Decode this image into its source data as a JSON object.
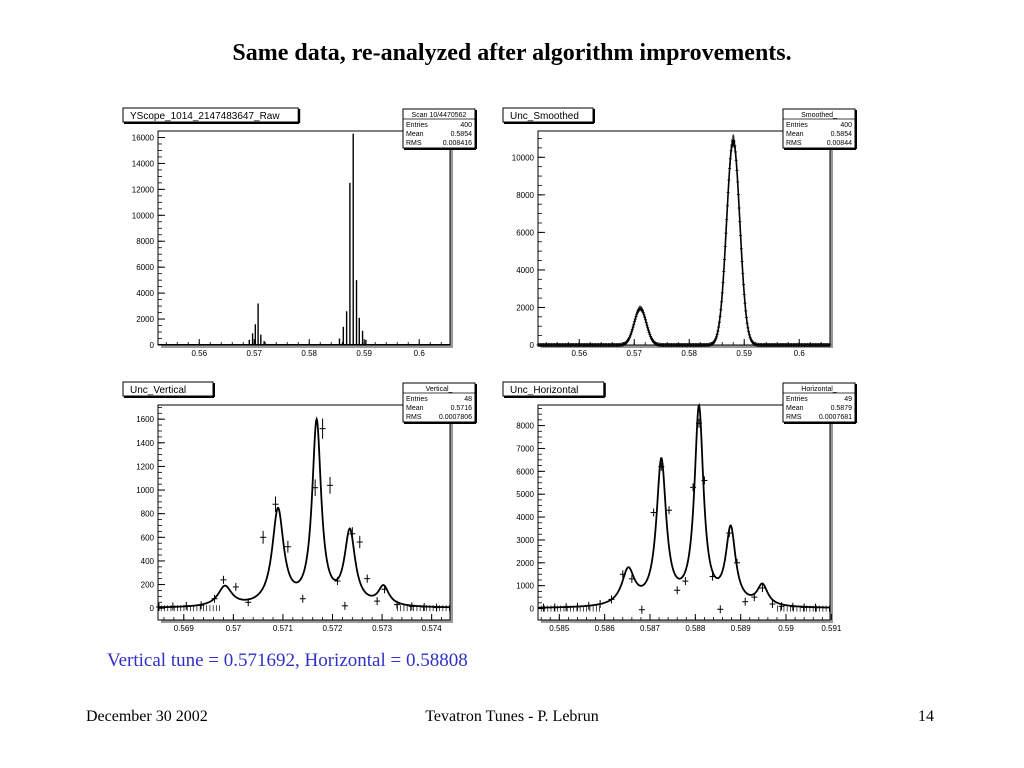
{
  "slide": {
    "title": "Same data, re-analyzed after algorithm improvements.",
    "caption": "Vertical tune = 0.571692, Horizontal = 0.58808",
    "footer_left": "December 30  2002",
    "footer_center": "Tevatron Tunes - P. Lebrun",
    "footer_right": "14"
  },
  "colors": {
    "title": "#000000",
    "caption": "#3030c8",
    "frame": "#000000",
    "background": "#ffffff"
  },
  "chart_data": [
    {
      "id": "raw",
      "type": "bar",
      "title": "YScope_1014_2147483647_Raw",
      "stats": {
        "name": "Scan 10/4470562",
        "entries": "400",
        "mean": "0.5854",
        "rms": "0.008416"
      },
      "xlim": [
        0.5525,
        0.6056
      ],
      "ylim": [
        0,
        16500
      ],
      "xticks": [
        "0.56",
        "0.57",
        "0.58",
        "0.59",
        "0.6"
      ],
      "xtick_values": [
        0.56,
        0.57,
        0.58,
        0.59,
        0.6
      ],
      "yticks": [
        "0",
        "2000",
        "4000",
        "6000",
        "8000",
        "10000",
        "12000",
        "14000",
        "16000"
      ],
      "ytick_values": [
        0,
        2000,
        4000,
        6000,
        8000,
        10000,
        12000,
        14000,
        16000
      ],
      "bars": [
        {
          "x": 0.5691,
          "y": 400
        },
        {
          "x": 0.5697,
          "y": 900
        },
        {
          "x": 0.5702,
          "y": 1600
        },
        {
          "x": 0.5707,
          "y": 3200
        },
        {
          "x": 0.5712,
          "y": 800
        },
        {
          "x": 0.5718,
          "y": 300
        },
        {
          "x": 0.5855,
          "y": 500
        },
        {
          "x": 0.5862,
          "y": 1400
        },
        {
          "x": 0.5868,
          "y": 2600
        },
        {
          "x": 0.5874,
          "y": 12500
        },
        {
          "x": 0.588,
          "y": 16300
        },
        {
          "x": 0.5886,
          "y": 5000
        },
        {
          "x": 0.5891,
          "y": 2100
        },
        {
          "x": 0.5897,
          "y": 1100
        },
        {
          "x": 0.5903,
          "y": 400
        }
      ]
    },
    {
      "id": "smoothed",
      "type": "line",
      "title": "Unc_Smoothed",
      "stats": {
        "name": "Smoothed_",
        "entries": "400",
        "mean": "0.5854",
        "rms": "0.00844"
      },
      "xlim": [
        0.5525,
        0.6056
      ],
      "ylim": [
        0,
        11400
      ],
      "xticks": [
        "0.56",
        "0.57",
        "0.58",
        "0.59",
        "0.6"
      ],
      "xtick_values": [
        0.56,
        0.57,
        0.58,
        0.59,
        0.6
      ],
      "yticks": [
        "0",
        "2000",
        "4000",
        "6000",
        "8000",
        "10000"
      ],
      "ytick_values": [
        0,
        2000,
        4000,
        6000,
        8000,
        10000
      ],
      "peaks": [
        {
          "center": 0.5711,
          "height": 1950,
          "sigma": 0.0011
        },
        {
          "center": 0.588,
          "height": 10900,
          "sigma": 0.0012
        }
      ],
      "baseline": 0,
      "point_step": 0.000133
    },
    {
      "id": "vertical",
      "type": "scatter",
      "title": "Unc_Vertical",
      "stats": {
        "name": "Vertical_",
        "entries": "48",
        "mean": "0.5716",
        "rms": "0.0007806"
      },
      "xlim": [
        0.56848,
        0.57437
      ],
      "ylim": [
        -100,
        1720
      ],
      "xticks": [
        "0.569",
        "0.57",
        "0.571",
        "0.572",
        "0.573",
        "0.574"
      ],
      "xtick_values": [
        0.569,
        0.57,
        0.571,
        0.572,
        0.573,
        0.574
      ],
      "yticks": [
        "0",
        "200",
        "400",
        "600",
        "800",
        "1000",
        "1200",
        "1400",
        "1600"
      ],
      "ytick_values": [
        0,
        200,
        400,
        600,
        800,
        1000,
        1200,
        1400,
        1600
      ],
      "fit_peaks": [
        {
          "center": 0.56983,
          "height": 170,
          "width": 0.00017
        },
        {
          "center": 0.5709,
          "height": 810,
          "width": 0.00014
        },
        {
          "center": 0.57168,
          "height": 1550,
          "width": 0.00011
        },
        {
          "center": 0.57235,
          "height": 620,
          "width": 0.00013
        },
        {
          "center": 0.57303,
          "height": 160,
          "width": 0.00013
        }
      ],
      "points": [
        {
          "x": 0.5685,
          "y": 10
        },
        {
          "x": 0.56878,
          "y": 15
        },
        {
          "x": 0.56905,
          "y": 20
        },
        {
          "x": 0.56935,
          "y": 25
        },
        {
          "x": 0.56962,
          "y": 80
        },
        {
          "x": 0.5698,
          "y": 240
        },
        {
          "x": 0.57005,
          "y": 180
        },
        {
          "x": 0.5703,
          "y": 50
        },
        {
          "x": 0.5706,
          "y": 600
        },
        {
          "x": 0.57085,
          "y": 880
        },
        {
          "x": 0.5711,
          "y": 520
        },
        {
          "x": 0.5714,
          "y": 80
        },
        {
          "x": 0.57165,
          "y": 1020
        },
        {
          "x": 0.5718,
          "y": 1520
        },
        {
          "x": 0.57195,
          "y": 1040
        },
        {
          "x": 0.5721,
          "y": 230
        },
        {
          "x": 0.57225,
          "y": 20
        },
        {
          "x": 0.5724,
          "y": 630
        },
        {
          "x": 0.57255,
          "y": 560
        },
        {
          "x": 0.5727,
          "y": 250
        },
        {
          "x": 0.5729,
          "y": 60
        },
        {
          "x": 0.57305,
          "y": 160
        },
        {
          "x": 0.5733,
          "y": 30
        },
        {
          "x": 0.5736,
          "y": 15
        },
        {
          "x": 0.57385,
          "y": 10
        },
        {
          "x": 0.5741,
          "y": 5
        }
      ]
    },
    {
      "id": "horizontal",
      "type": "scatter",
      "title": "Unc_Horizontal",
      "stats": {
        "name": "Horizontal_",
        "entries": "49",
        "mean": "0.5879",
        "rms": "0.0007681"
      },
      "xlim": [
        0.58453,
        0.59097
      ],
      "ylim": [
        -500,
        8900
      ],
      "xticks": [
        "0.585",
        "0.586",
        "0.587",
        "0.588",
        "0.589",
        "0.59",
        "0.591"
      ],
      "xtick_values": [
        0.585,
        0.586,
        0.587,
        0.588,
        0.589,
        0.59,
        0.591
      ],
      "yticks": [
        "0",
        "1000",
        "2000",
        "3000",
        "4000",
        "5000",
        "6000",
        "7000",
        "8000"
      ],
      "ytick_values": [
        0,
        1000,
        2000,
        3000,
        4000,
        5000,
        6000,
        7000,
        8000
      ],
      "fit_peaks": [
        {
          "center": 0.58652,
          "height": 1550,
          "width": 0.00017
        },
        {
          "center": 0.58725,
          "height": 6300,
          "width": 0.00013
        },
        {
          "center": 0.58808,
          "height": 8600,
          "width": 0.00012
        },
        {
          "center": 0.58878,
          "height": 3300,
          "width": 0.00013
        },
        {
          "center": 0.58948,
          "height": 900,
          "width": 0.00014
        }
      ],
      "points": [
        {
          "x": 0.58465,
          "y": 40
        },
        {
          "x": 0.5849,
          "y": 50
        },
        {
          "x": 0.58515,
          "y": 60
        },
        {
          "x": 0.5854,
          "y": 80
        },
        {
          "x": 0.58565,
          "y": 120
        },
        {
          "x": 0.5859,
          "y": 200
        },
        {
          "x": 0.58615,
          "y": 400
        },
        {
          "x": 0.5864,
          "y": 1500
        },
        {
          "x": 0.5866,
          "y": 1300
        },
        {
          "x": 0.58682,
          "y": -50
        },
        {
          "x": 0.58708,
          "y": 4200
        },
        {
          "x": 0.58725,
          "y": 6200
        },
        {
          "x": 0.58742,
          "y": 4300
        },
        {
          "x": 0.5876,
          "y": 800
        },
        {
          "x": 0.58778,
          "y": 1200
        },
        {
          "x": 0.58795,
          "y": 5300
        },
        {
          "x": 0.58808,
          "y": 8100
        },
        {
          "x": 0.5882,
          "y": 5600
        },
        {
          "x": 0.58838,
          "y": 1400
        },
        {
          "x": 0.58855,
          "y": -30
        },
        {
          "x": 0.58875,
          "y": 3300
        },
        {
          "x": 0.58892,
          "y": 2000
        },
        {
          "x": 0.5891,
          "y": 300
        },
        {
          "x": 0.5893,
          "y": 500
        },
        {
          "x": 0.58948,
          "y": 900
        },
        {
          "x": 0.5897,
          "y": 200
        },
        {
          "x": 0.5899,
          "y": 100
        },
        {
          "x": 0.59015,
          "y": 80
        },
        {
          "x": 0.5904,
          "y": 50
        },
        {
          "x": 0.59065,
          "y": 40
        }
      ]
    }
  ]
}
